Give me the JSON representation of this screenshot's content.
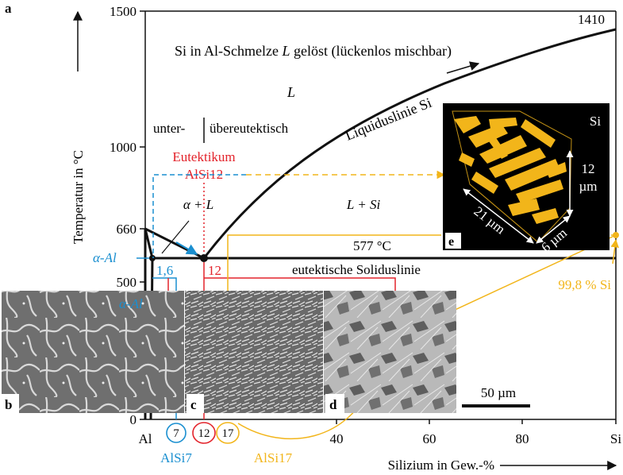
{
  "panel_label_a": "a",
  "axes": {
    "ylabel": "Temperatur in °C",
    "xlabel": "Silizium in Gew.-%",
    "y_ticks": [
      "1500",
      "1000",
      "660",
      "500",
      "0"
    ],
    "x_ticks": [
      "Al",
      "40",
      "60",
      "80",
      "Si"
    ],
    "x_circled_ticks": [
      "7",
      "12",
      "17"
    ]
  },
  "labels": {
    "title": "Si in Al-Schmelze L gelöst (lückenlos mischbar)",
    "title_pre": "Si in Al-Schmelze ",
    "title_L": "L",
    "title_post": " gelöst (lückenlos mischbar)",
    "liquidus": "Liquiduslinie Si",
    "L_region": "L",
    "unter": "unter-",
    "uebereutektisch": "übereutektisch",
    "eutektikum": "Eutektikum",
    "alsi12": "AlSi12",
    "alpha_L": "α + L",
    "L_Si": "L + Si",
    "temp_1410": "1410",
    "temp_577": "577 °C",
    "solidus": "eutektische Soliduslinie",
    "alpha_al": "α-Al",
    "alpha_al_img": "α-Al",
    "val_16": "1,6",
    "val_12": "12",
    "si_998": "99,8 % Si",
    "alsi7": "AlSi7",
    "alsi17": "AlSi17",
    "scale_50": "50 µm",
    "panel_b": "b",
    "panel_c": "c",
    "panel_d": "d",
    "panel_e": "e",
    "inset_si": "Si",
    "dim_12": "12",
    "dim_um": "µm",
    "dim_21": "21 µm",
    "dim_6": "6 µm"
  },
  "colors": {
    "blue": "#1a8fd0",
    "red": "#e3232b",
    "orange": "#f2b51a",
    "black": "#111111"
  },
  "chart_data": {
    "type": "phase-diagram",
    "x_unit": "Gew.-% Si",
    "y_unit": "°C",
    "xlim": [
      0,
      100
    ],
    "ylim": [
      0,
      1500
    ],
    "points": {
      "melting_al": [
        0,
        660
      ],
      "eutectic": [
        12,
        577
      ],
      "max_solubility_al": [
        1.6,
        577
      ],
      "melting_si": [
        100,
        1410
      ]
    }
  }
}
